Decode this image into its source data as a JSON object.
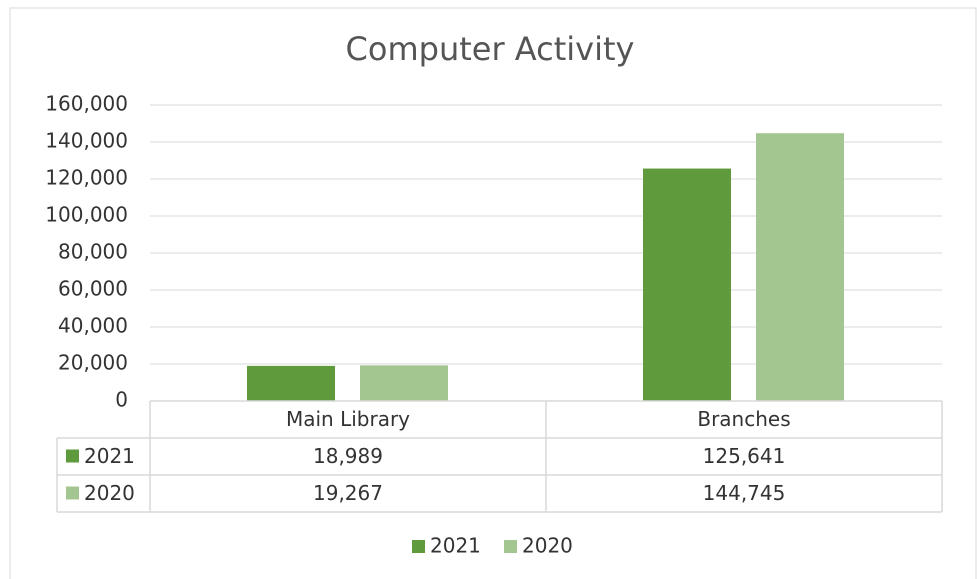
{
  "chart_data": {
    "type": "bar",
    "title": "Computer Activity",
    "categories": [
      "Main Library",
      "Branches"
    ],
    "series": [
      {
        "name": "2021",
        "color": "#5f9a3c",
        "values": [
          18989,
          125641
        ],
        "value_labels": [
          "18,989",
          "125,641"
        ]
      },
      {
        "name": "2020",
        "color": "#a3c58f",
        "values": [
          19267,
          144745
        ],
        "value_labels": [
          "19,267",
          "144,745"
        ]
      }
    ],
    "ylim": [
      0,
      160000
    ],
    "yticks": [
      0,
      {
        "value": 20000,
        "label": "20,000"
      },
      {
        "value": 40000,
        "label": "40,000"
      },
      {
        "value": 60000,
        "label": "60,000"
      },
      {
        "value": 80000,
        "label": "80,000"
      },
      {
        "value": 100000,
        "label": "100,000"
      },
      {
        "value": 120000,
        "label": "120,000"
      },
      {
        "value": 140000,
        "label": "140,000"
      },
      {
        "value": 160000,
        "label": "160,000"
      }
    ],
    "grid": true,
    "legend": "bottom"
  }
}
